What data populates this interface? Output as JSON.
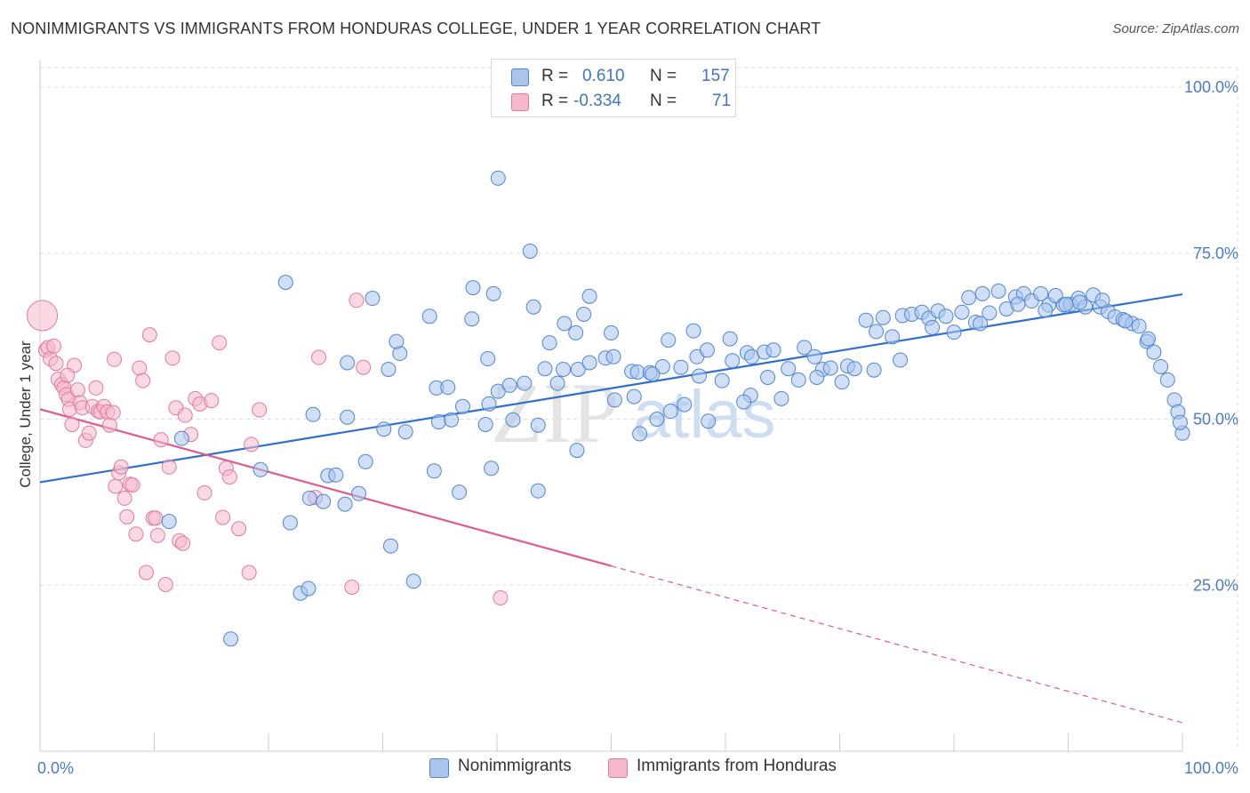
{
  "header": {
    "title": "NONIMMIGRANTS VS IMMIGRANTS FROM HONDURAS COLLEGE, UNDER 1 YEAR CORRELATION CHART",
    "source": "Source: ZipAtlas.com"
  },
  "legend_box": {
    "rows": [
      {
        "r_label": "R =",
        "r_value": "0.610",
        "n_label": "N =",
        "n_value": "157"
      },
      {
        "r_label": "R =",
        "r_value": "-0.334",
        "n_label": "N =",
        "n_value": "71"
      }
    ]
  },
  "bottom_legend": {
    "items": [
      "Nonimmigrants",
      "Immigrants from Honduras"
    ]
  },
  "watermark": {
    "part1": "ZIP",
    "part2": "atlas"
  },
  "colors": {
    "blue_fill": "#a9c5ec",
    "blue_stroke": "#4f86d4",
    "blue_line": "#2f6fd0",
    "pink_fill": "#f6b9cc",
    "pink_stroke": "#e27a9b",
    "pink_line": "#e05a8a",
    "grid": "#dddddd",
    "axis_text": "#4a7cc9"
  },
  "chart_data": {
    "type": "scatter",
    "title": "NONIMMIGRANTS VS IMMIGRANTS FROM HONDURAS COLLEGE, UNDER 1 YEAR CORRELATION CHART",
    "xlabel": "",
    "ylabel": "College, Under 1 year",
    "xlim": [
      0,
      100
    ],
    "ylim": [
      0,
      105
    ],
    "x_tick_labels": [
      "0.0%",
      "100.0%"
    ],
    "y_ticks": [
      25,
      50,
      75,
      100
    ],
    "y_tick_labels": [
      "25.0%",
      "50.0%",
      "75.0%",
      "100.0%"
    ],
    "grid": true,
    "legend_position": "bottom",
    "series": [
      {
        "name": "Nonimmigrants",
        "color": "#4f86d4",
        "trend": {
          "x": [
            0,
            100
          ],
          "y": [
            40.5,
            68.8
          ]
        },
        "points": [
          [
            40.1,
            86.3
          ],
          [
            42.9,
            75.3
          ],
          [
            21.5,
            70.6
          ],
          [
            37.9,
            69.8
          ],
          [
            29.1,
            68.2
          ],
          [
            39.7,
            68.9
          ],
          [
            43.2,
            66.9
          ],
          [
            45.9,
            64.4
          ],
          [
            48.1,
            68.5
          ],
          [
            34.1,
            65.5
          ],
          [
            37.8,
            65.1
          ],
          [
            47.6,
            65.8
          ],
          [
            46.9,
            63.0
          ],
          [
            50.0,
            63.0
          ],
          [
            31.5,
            59.9
          ],
          [
            39.2,
            59.1
          ],
          [
            26.9,
            58.5
          ],
          [
            30.5,
            57.5
          ],
          [
            34.7,
            54.7
          ],
          [
            35.7,
            54.8
          ],
          [
            40.1,
            54.2
          ],
          [
            41.1,
            55.1
          ],
          [
            42.4,
            55.4
          ],
          [
            44.2,
            57.6
          ],
          [
            45.8,
            57.5
          ],
          [
            47.1,
            57.5
          ],
          [
            48.1,
            58.5
          ],
          [
            49.5,
            59.2
          ],
          [
            50.2,
            59.4
          ],
          [
            51.8,
            57.2
          ],
          [
            52.3,
            57.1
          ],
          [
            53.4,
            57.0
          ],
          [
            54.5,
            57.9
          ],
          [
            56.1,
            57.8
          ],
          [
            57.5,
            59.4
          ],
          [
            58.4,
            60.4
          ],
          [
            55.0,
            61.9
          ],
          [
            57.2,
            63.3
          ],
          [
            60.4,
            62.1
          ],
          [
            61.9,
            60.0
          ],
          [
            62.3,
            59.4
          ],
          [
            63.4,
            60.1
          ],
          [
            64.2,
            60.4
          ],
          [
            65.5,
            57.6
          ],
          [
            66.9,
            60.8
          ],
          [
            67.8,
            59.4
          ],
          [
            68.5,
            57.5
          ],
          [
            69.2,
            57.7
          ],
          [
            70.7,
            58.0
          ],
          [
            71.3,
            57.6
          ],
          [
            72.3,
            64.9
          ],
          [
            73.2,
            63.2
          ],
          [
            73.8,
            65.3
          ],
          [
            74.6,
            62.4
          ],
          [
            75.5,
            65.6
          ],
          [
            76.3,
            65.8
          ],
          [
            77.2,
            66.1
          ],
          [
            77.8,
            65.2
          ],
          [
            78.6,
            66.3
          ],
          [
            79.3,
            65.5
          ],
          [
            80.0,
            63.1
          ],
          [
            80.7,
            66.1
          ],
          [
            81.3,
            68.3
          ],
          [
            81.9,
            64.6
          ],
          [
            82.5,
            68.9
          ],
          [
            83.1,
            66.0
          ],
          [
            83.9,
            69.3
          ],
          [
            84.6,
            66.6
          ],
          [
            85.4,
            68.4
          ],
          [
            86.1,
            68.9
          ],
          [
            86.8,
            67.8
          ],
          [
            87.6,
            68.9
          ],
          [
            88.3,
            67.2
          ],
          [
            88.9,
            68.6
          ],
          [
            89.6,
            67.2
          ],
          [
            90.2,
            67.3
          ],
          [
            90.9,
            68.2
          ],
          [
            91.5,
            66.9
          ],
          [
            92.2,
            68.7
          ],
          [
            92.8,
            66.9
          ],
          [
            93.5,
            66.2
          ],
          [
            94.1,
            65.4
          ],
          [
            94.8,
            65.0
          ],
          [
            95.6,
            64.4
          ],
          [
            96.2,
            64.0
          ],
          [
            96.9,
            61.7
          ],
          [
            97.5,
            60.1
          ],
          [
            98.1,
            57.9
          ],
          [
            98.7,
            55.9
          ],
          [
            99.3,
            52.9
          ],
          [
            99.6,
            51.1
          ],
          [
            100.0,
            47.9
          ],
          [
            66.4,
            55.9
          ],
          [
            62.2,
            53.6
          ],
          [
            61.6,
            52.6
          ],
          [
            59.7,
            55.8
          ],
          [
            58.5,
            49.7
          ],
          [
            56.4,
            52.2
          ],
          [
            54.0,
            50.0
          ],
          [
            55.2,
            51.2
          ],
          [
            52.0,
            53.4
          ],
          [
            52.5,
            47.8
          ],
          [
            50.3,
            52.9
          ],
          [
            57.7,
            56.5
          ],
          [
            63.7,
            56.3
          ],
          [
            64.9,
            53.1
          ],
          [
            68.0,
            56.3
          ],
          [
            70.2,
            55.6
          ],
          [
            41.4,
            49.9
          ],
          [
            43.6,
            49.1
          ],
          [
            37.0,
            51.9
          ],
          [
            39.3,
            52.3
          ],
          [
            34.9,
            49.6
          ],
          [
            36.0,
            49.9
          ],
          [
            26.9,
            50.3
          ],
          [
            30.1,
            48.5
          ],
          [
            32.0,
            48.1
          ],
          [
            23.9,
            50.7
          ],
          [
            28.5,
            43.6
          ],
          [
            25.2,
            41.5
          ],
          [
            19.3,
            42.4
          ],
          [
            23.6,
            38.1
          ],
          [
            24.8,
            37.6
          ],
          [
            25.9,
            41.6
          ],
          [
            26.7,
            37.2
          ],
          [
            27.9,
            38.8
          ],
          [
            34.5,
            42.2
          ],
          [
            36.7,
            39.0
          ],
          [
            39.5,
            42.6
          ],
          [
            43.6,
            39.2
          ],
          [
            47.0,
            45.3
          ],
          [
            21.9,
            34.4
          ],
          [
            12.4,
            47.1
          ],
          [
            11.3,
            34.6
          ],
          [
            16.7,
            16.9
          ],
          [
            22.8,
            23.8
          ],
          [
            23.5,
            24.5
          ],
          [
            30.7,
            30.9
          ],
          [
            32.7,
            25.6
          ],
          [
            31.2,
            61.7
          ],
          [
            44.6,
            61.5
          ],
          [
            39.0,
            49.2
          ],
          [
            45.3,
            55.4
          ],
          [
            53.6,
            56.8
          ],
          [
            60.6,
            58.8
          ],
          [
            73.0,
            57.4
          ],
          [
            75.3,
            58.9
          ],
          [
            78.1,
            63.8
          ],
          [
            82.3,
            64.4
          ],
          [
            85.6,
            67.3
          ],
          [
            88.0,
            66.4
          ],
          [
            89.8,
            67.3
          ],
          [
            91.0,
            67.6
          ],
          [
            93.0,
            67.9
          ],
          [
            95.0,
            64.8
          ],
          [
            97.0,
            62.1
          ],
          [
            99.8,
            49.5
          ]
        ]
      },
      {
        "name": "Immigrants from Honduras",
        "color": "#e27a9b",
        "trend": {
          "x": [
            0,
            50
          ],
          "y": [
            51.5,
            27.9
          ],
          "dashed_extension": {
            "x": [
              50,
              100
            ],
            "y": [
              27.9,
              4.3
            ]
          }
        },
        "points": [
          [
            0.2,
            65.6
          ],
          [
            0.5,
            60.4
          ],
          [
            0.7,
            60.8
          ],
          [
            0.9,
            59.1
          ],
          [
            1.4,
            58.4
          ],
          [
            1.6,
            56.0
          ],
          [
            1.9,
            55.2
          ],
          [
            2.1,
            54.7
          ],
          [
            2.3,
            53.7
          ],
          [
            2.5,
            53.0
          ],
          [
            2.6,
            51.5
          ],
          [
            2.8,
            49.2
          ],
          [
            3.0,
            58.1
          ],
          [
            3.3,
            54.4
          ],
          [
            3.5,
            52.5
          ],
          [
            3.7,
            51.7
          ],
          [
            4.0,
            46.8
          ],
          [
            4.3,
            47.9
          ],
          [
            4.6,
            51.9
          ],
          [
            4.9,
            54.7
          ],
          [
            5.1,
            51.2
          ],
          [
            5.3,
            51.1
          ],
          [
            5.6,
            51.9
          ],
          [
            5.9,
            51.1
          ],
          [
            6.1,
            49.1
          ],
          [
            6.4,
            51.0
          ],
          [
            6.6,
            39.9
          ],
          [
            6.9,
            41.9
          ],
          [
            7.1,
            42.8
          ],
          [
            7.4,
            38.1
          ],
          [
            7.6,
            35.3
          ],
          [
            7.9,
            40.2
          ],
          [
            8.1,
            40.1
          ],
          [
            8.4,
            32.7
          ],
          [
            8.7,
            57.7
          ],
          [
            9.0,
            55.8
          ],
          [
            9.3,
            26.9
          ],
          [
            9.6,
            62.7
          ],
          [
            9.9,
            35.1
          ],
          [
            10.1,
            35.1
          ],
          [
            10.3,
            32.5
          ],
          [
            10.6,
            46.9
          ],
          [
            11.0,
            25.1
          ],
          [
            11.3,
            42.8
          ],
          [
            11.6,
            59.2
          ],
          [
            11.9,
            51.7
          ],
          [
            12.2,
            31.7
          ],
          [
            12.5,
            31.3
          ],
          [
            12.7,
            50.6
          ],
          [
            13.2,
            47.7
          ],
          [
            13.6,
            53.1
          ],
          [
            14.0,
            52.3
          ],
          [
            14.4,
            38.9
          ],
          [
            15.0,
            52.8
          ],
          [
            15.7,
            61.5
          ],
          [
            16.0,
            35.2
          ],
          [
            16.3,
            42.6
          ],
          [
            16.6,
            41.3
          ],
          [
            17.4,
            33.5
          ],
          [
            18.3,
            26.9
          ],
          [
            18.5,
            46.2
          ],
          [
            19.2,
            51.4
          ],
          [
            24.1,
            38.2
          ],
          [
            24.4,
            59.3
          ],
          [
            27.3,
            24.7
          ],
          [
            27.7,
            67.9
          ],
          [
            28.3,
            57.8
          ],
          [
            40.3,
            23.1
          ],
          [
            6.5,
            59.0
          ],
          [
            1.2,
            61.0
          ],
          [
            2.4,
            56.6
          ]
        ]
      }
    ]
  }
}
